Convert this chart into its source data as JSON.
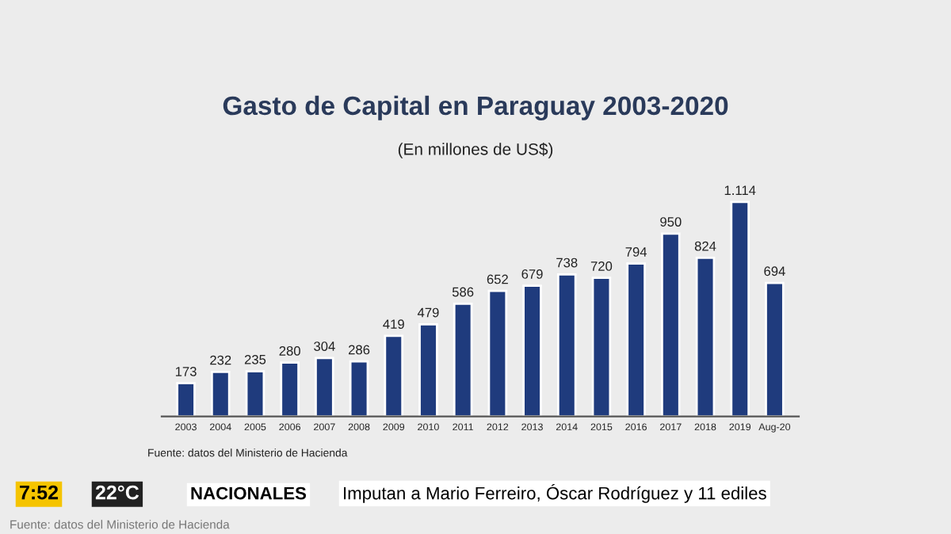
{
  "chart_data": {
    "type": "bar",
    "title": "Gasto de Capital en Paraguay 2003-2020",
    "subtitle": "(En millones de US$)",
    "categories": [
      "2003",
      "2004",
      "2005",
      "2006",
      "2007",
      "2008",
      "2009",
      "2010",
      "2011",
      "2012",
      "2013",
      "2014",
      "2015",
      "2016",
      "2017",
      "2018",
      "2019",
      "Aug-20"
    ],
    "values": [
      173,
      232,
      235,
      280,
      304,
      286,
      419,
      479,
      586,
      652,
      679,
      738,
      720,
      794,
      950,
      824,
      1114,
      694
    ],
    "value_labels": [
      "173",
      "232",
      "235",
      "280",
      "304",
      "286",
      "419",
      "479",
      "586",
      "652",
      "679",
      "738",
      "720",
      "794",
      "950",
      "824",
      "1.114",
      "694"
    ],
    "color": "#1f3b7d",
    "annotations": [
      "Fuente: datos del Ministerio de Hacienda",
      "7:52",
      "22°C",
      "NACIONALES",
      "Imputan a Mario Ferreiro, Óscar Rodríguez y 11 ediles",
      "Fuente: datos del Ministerio de Hacienda"
    ]
  }
}
